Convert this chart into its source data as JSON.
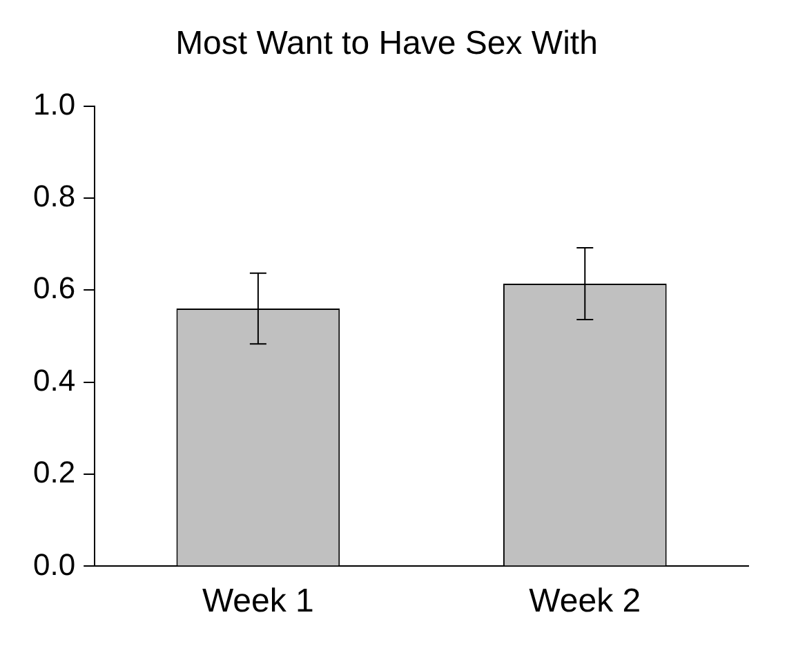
{
  "chart_data": {
    "type": "bar",
    "title": "Most Want to Have Sex With",
    "categories": [
      "Week 1",
      "Week 2"
    ],
    "values": [
      0.56,
      0.614
    ],
    "color": "#c0c0c0",
    "errors": [
      0.077,
      0.078
    ],
    "ylim": [
      0,
      1
    ],
    "yticks": [
      {
        "value": 0,
        "label": "0.0"
      },
      {
        "value": 0.2,
        "label": "0.2"
      },
      {
        "value": 0.4,
        "label": "0.4"
      },
      {
        "value": 0.6,
        "label": "0.6"
      },
      {
        "value": 0.8,
        "label": "0.8"
      },
      {
        "value": 1,
        "label": "1.0"
      }
    ],
    "grid": false,
    "legend": false
  }
}
